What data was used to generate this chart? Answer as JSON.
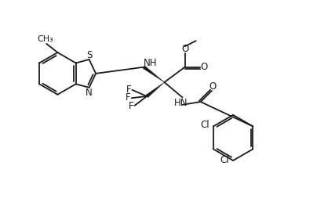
{
  "bg_color": "#ffffff",
  "line_color": "#1a1a1a",
  "lw": 1.3,
  "fs": 8.5,
  "xlim": [
    0,
    10
  ],
  "ylim": [
    0,
    7.5
  ]
}
